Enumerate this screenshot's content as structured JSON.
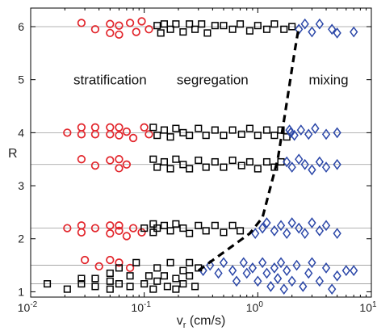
{
  "chart_data": {
    "type": "scatter",
    "xscale": "log",
    "xlim": [
      0.01,
      10
    ],
    "ylim": [
      0.9,
      6.35
    ],
    "xlabel": "v",
    "xlabel_sub": "r",
    "xlabel_unit": " (cm/s)",
    "ylabel": "R",
    "x_ticks": [
      {
        "value": 0.01,
        "base": "10",
        "exp": "-2"
      },
      {
        "value": 0.1,
        "base": "10",
        "exp": "-1"
      },
      {
        "value": 1,
        "base": "10",
        "exp": "0"
      },
      {
        "value": 10,
        "base": "10",
        "exp": "1"
      }
    ],
    "y_ticks": [
      1,
      2,
      3,
      4,
      5,
      6
    ],
    "reference_lines_R": [
      1.15,
      1.5,
      2.2,
      3.4,
      4.0,
      6.0
    ],
    "region_labels": [
      {
        "text": "stratification",
        "x": 0.05,
        "y": 5.0
      },
      {
        "text": "segregation",
        "x": 0.4,
        "y": 5.0
      },
      {
        "text": "mixing",
        "x": 4.2,
        "y": 5.0
      }
    ],
    "boundary": {
      "style": "dashed",
      "color": "#000000",
      "points": [
        [
          0.3,
          1.4
        ],
        [
          0.85,
          2.1
        ],
        [
          1.1,
          2.4
        ],
        [
          1.5,
          3.5
        ],
        [
          1.75,
          4.4
        ],
        [
          2.1,
          5.5
        ],
        [
          2.3,
          6.0
        ]
      ]
    },
    "series": [
      {
        "marker": "circle",
        "color": "#e2252b",
        "points": [
          [
            0.028,
            6.07
          ],
          [
            0.037,
            5.95
          ],
          [
            0.05,
            6.05
          ],
          [
            0.05,
            5.88
          ],
          [
            0.06,
            6.02
          ],
          [
            0.06,
            5.85
          ],
          [
            0.075,
            6.07
          ],
          [
            0.085,
            5.9
          ],
          [
            0.095,
            6.1
          ],
          [
            0.11,
            5.95
          ],
          [
            0.028,
            4.1
          ],
          [
            0.028,
            3.97
          ],
          [
            0.021,
            4.0
          ],
          [
            0.037,
            4.1
          ],
          [
            0.037,
            3.97
          ],
          [
            0.05,
            4.1
          ],
          [
            0.05,
            3.97
          ],
          [
            0.06,
            4.1
          ],
          [
            0.06,
            3.95
          ],
          [
            0.07,
            4.02
          ],
          [
            0.08,
            3.9
          ],
          [
            0.1,
            4.1
          ],
          [
            0.11,
            3.97
          ],
          [
            0.028,
            3.5
          ],
          [
            0.037,
            3.38
          ],
          [
            0.05,
            3.48
          ],
          [
            0.06,
            3.5
          ],
          [
            0.06,
            3.33
          ],
          [
            0.07,
            3.4
          ],
          [
            0.021,
            2.2
          ],
          [
            0.028,
            2.25
          ],
          [
            0.028,
            2.12
          ],
          [
            0.037,
            2.2
          ],
          [
            0.05,
            2.25
          ],
          [
            0.05,
            2.1
          ],
          [
            0.06,
            2.25
          ],
          [
            0.06,
            2.15
          ],
          [
            0.07,
            2.05
          ],
          [
            0.08,
            2.2
          ],
          [
            0.095,
            2.12
          ],
          [
            0.03,
            1.6
          ],
          [
            0.04,
            1.48
          ],
          [
            0.05,
            1.6
          ],
          [
            0.06,
            1.55
          ],
          [
            0.075,
            1.45
          ]
        ]
      },
      {
        "marker": "square",
        "color": "#000000",
        "points": [
          [
            0.13,
            6.02
          ],
          [
            0.14,
            5.88
          ],
          [
            0.15,
            6.05
          ],
          [
            0.17,
            5.95
          ],
          [
            0.19,
            6.05
          ],
          [
            0.22,
            5.9
          ],
          [
            0.25,
            6.05
          ],
          [
            0.28,
            5.95
          ],
          [
            0.32,
            6.05
          ],
          [
            0.36,
            5.88
          ],
          [
            0.42,
            6.02
          ],
          [
            0.5,
            6.02
          ],
          [
            0.6,
            5.95
          ],
          [
            0.7,
            6.05
          ],
          [
            0.85,
            5.92
          ],
          [
            1.0,
            6.02
          ],
          [
            1.2,
            5.95
          ],
          [
            1.4,
            6.05
          ],
          [
            1.7,
            5.95
          ],
          [
            2.0,
            6.0
          ],
          [
            0.12,
            4.1
          ],
          [
            0.13,
            3.95
          ],
          [
            0.15,
            4.05
          ],
          [
            0.17,
            3.92
          ],
          [
            0.19,
            4.08
          ],
          [
            0.22,
            4.0
          ],
          [
            0.25,
            3.95
          ],
          [
            0.3,
            4.08
          ],
          [
            0.35,
            3.95
          ],
          [
            0.42,
            4.05
          ],
          [
            0.5,
            3.95
          ],
          [
            0.6,
            4.05
          ],
          [
            0.72,
            3.97
          ],
          [
            0.85,
            4.08
          ],
          [
            1.0,
            3.95
          ],
          [
            1.2,
            4.05
          ],
          [
            1.4,
            3.95
          ],
          [
            1.6,
            4.05
          ],
          [
            1.8,
            3.92
          ],
          [
            0.12,
            3.5
          ],
          [
            0.13,
            3.35
          ],
          [
            0.15,
            3.45
          ],
          [
            0.17,
            3.32
          ],
          [
            0.19,
            3.5
          ],
          [
            0.22,
            3.4
          ],
          [
            0.25,
            3.32
          ],
          [
            0.3,
            3.48
          ],
          [
            0.35,
            3.35
          ],
          [
            0.42,
            3.45
          ],
          [
            0.5,
            3.35
          ],
          [
            0.6,
            3.48
          ],
          [
            0.72,
            3.38
          ],
          [
            0.85,
            3.45
          ],
          [
            1.0,
            3.32
          ],
          [
            1.2,
            3.45
          ],
          [
            1.4,
            3.35
          ],
          [
            1.6,
            3.45
          ],
          [
            0.1,
            2.2
          ],
          [
            0.12,
            2.28
          ],
          [
            0.12,
            2.12
          ],
          [
            0.13,
            2.2
          ],
          [
            0.15,
            2.25
          ],
          [
            0.17,
            2.15
          ],
          [
            0.19,
            2.28
          ],
          [
            0.22,
            2.2
          ],
          [
            0.25,
            2.1
          ],
          [
            0.3,
            2.25
          ],
          [
            0.35,
            2.15
          ],
          [
            0.42,
            2.25
          ],
          [
            0.5,
            2.12
          ],
          [
            0.6,
            2.25
          ],
          [
            0.7,
            2.15
          ],
          [
            0.014,
            1.15
          ],
          [
            0.021,
            1.05
          ],
          [
            0.028,
            1.15
          ],
          [
            0.028,
            1.25
          ],
          [
            0.037,
            1.1
          ],
          [
            0.037,
            1.25
          ],
          [
            0.05,
            1.05
          ],
          [
            0.05,
            1.2
          ],
          [
            0.05,
            1.35
          ],
          [
            0.06,
            1.15
          ],
          [
            0.06,
            1.45
          ],
          [
            0.075,
            1.1
          ],
          [
            0.075,
            1.3
          ],
          [
            0.085,
            1.55
          ],
          [
            0.1,
            1.15
          ],
          [
            0.11,
            1.3
          ],
          [
            0.12,
            1.05
          ],
          [
            0.13,
            1.2
          ],
          [
            0.13,
            1.45
          ],
          [
            0.15,
            1.3
          ],
          [
            0.16,
            1.1
          ],
          [
            0.17,
            1.55
          ],
          [
            0.19,
            1.25
          ],
          [
            0.19,
            1.05
          ],
          [
            0.22,
            1.4
          ],
          [
            0.22,
            1.15
          ],
          [
            0.25,
            1.55
          ],
          [
            0.25,
            1.3
          ],
          [
            0.28,
            1.1
          ],
          [
            0.3,
            1.45
          ]
        ]
      },
      {
        "marker": "diamond",
        "color": "#2b47a8",
        "points": [
          [
            2.3,
            5.95
          ],
          [
            2.6,
            6.05
          ],
          [
            3.0,
            5.9
          ],
          [
            3.5,
            6.05
          ],
          [
            4.5,
            5.95
          ],
          [
            5.0,
            5.88
          ],
          [
            7.0,
            5.9
          ],
          [
            1.9,
            4.05
          ],
          [
            2.1,
            3.95
          ],
          [
            2.4,
            4.05
          ],
          [
            2.8,
            3.97
          ],
          [
            3.2,
            4.08
          ],
          [
            4.0,
            3.97
          ],
          [
            5.0,
            4.0
          ],
          [
            1.95,
            4.0
          ],
          [
            1.8,
            3.45
          ],
          [
            2.0,
            3.35
          ],
          [
            2.3,
            3.5
          ],
          [
            2.6,
            3.4
          ],
          [
            3.0,
            3.3
          ],
          [
            3.5,
            3.45
          ],
          [
            4.0,
            3.35
          ],
          [
            5.0,
            3.4
          ],
          [
            0.95,
            2.1
          ],
          [
            1.1,
            2.2
          ],
          [
            1.2,
            2.3
          ],
          [
            1.4,
            2.15
          ],
          [
            1.6,
            2.25
          ],
          [
            1.8,
            2.1
          ],
          [
            2.0,
            2.3
          ],
          [
            2.3,
            2.2
          ],
          [
            2.6,
            2.1
          ],
          [
            3.0,
            2.3
          ],
          [
            3.5,
            2.15
          ],
          [
            4.0,
            2.25
          ],
          [
            5.0,
            2.1
          ],
          [
            0.33,
            1.4
          ],
          [
            0.38,
            1.5
          ],
          [
            0.45,
            1.35
          ],
          [
            0.5,
            1.55
          ],
          [
            0.6,
            1.4
          ],
          [
            0.65,
            1.2
          ],
          [
            0.75,
            1.55
          ],
          [
            0.8,
            1.35
          ],
          [
            0.9,
            1.45
          ],
          [
            1.0,
            1.2
          ],
          [
            1.1,
            1.55
          ],
          [
            1.2,
            1.35
          ],
          [
            1.3,
            1.1
          ],
          [
            1.4,
            1.45
          ],
          [
            1.5,
            1.25
          ],
          [
            1.6,
            1.55
          ],
          [
            1.7,
            1.05
          ],
          [
            1.8,
            1.4
          ],
          [
            2.0,
            1.2
          ],
          [
            2.2,
            1.5
          ],
          [
            2.5,
            1.1
          ],
          [
            2.8,
            1.35
          ],
          [
            3.0,
            1.55
          ],
          [
            3.5,
            1.2
          ],
          [
            4.0,
            1.45
          ],
          [
            4.5,
            1.05
          ],
          [
            5.0,
            1.3
          ],
          [
            6.0,
            1.4
          ],
          [
            7.0,
            1.4
          ]
        ]
      }
    ]
  }
}
